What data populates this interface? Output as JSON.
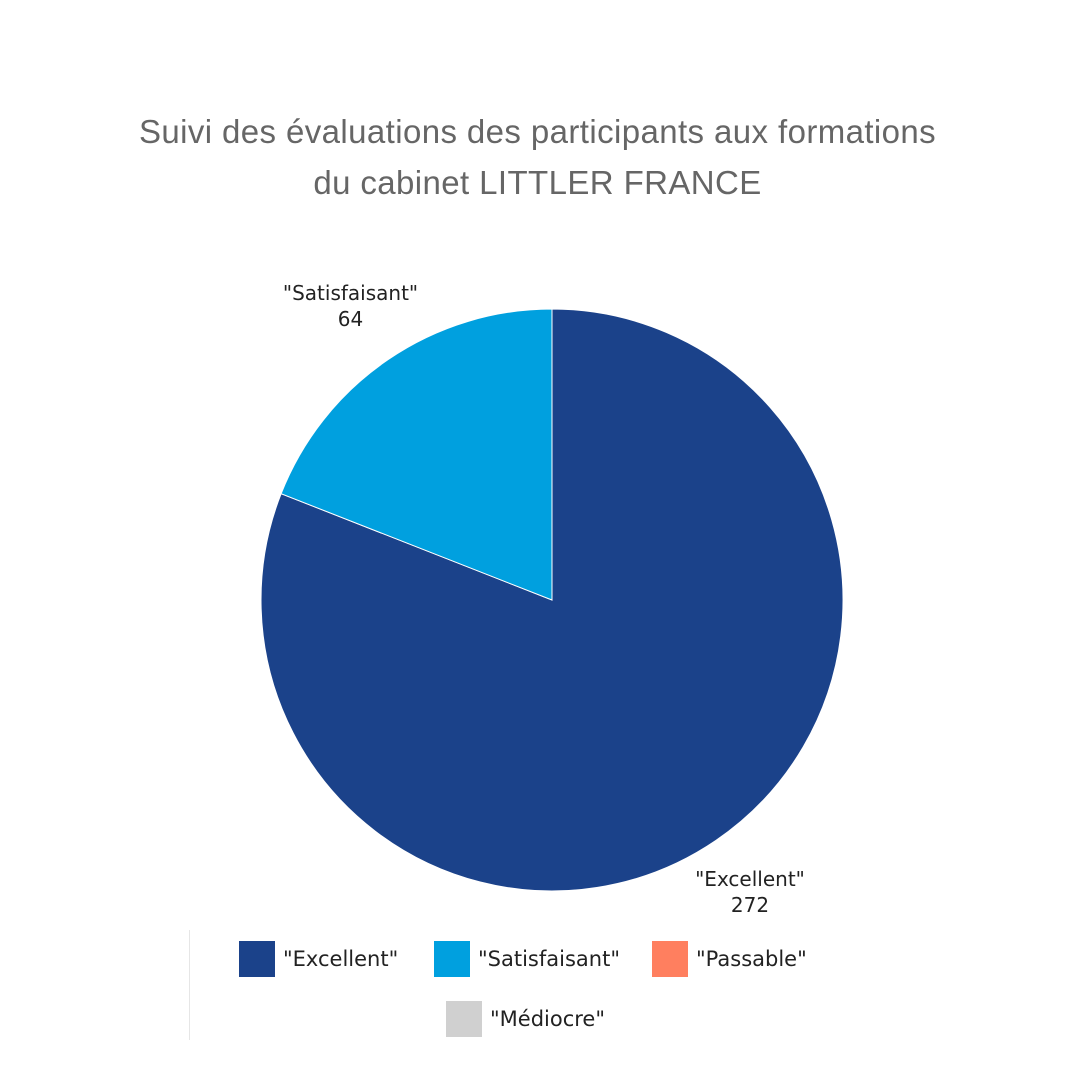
{
  "chart_data": {
    "type": "pie",
    "title_lines": [
      "Suivi des évaluations des participants aux formations",
      "du cabinet LITTLER FRANCE"
    ],
    "categories": [
      "\"Excellent\"",
      "\"Satisfaisant\"",
      "\"Passable\"",
      "\"Médiocre\""
    ],
    "values": [
      272,
      64,
      0,
      0
    ],
    "colors": [
      "#1b428a",
      "#00a0df",
      "#ff7f5f",
      "#d0d0d0"
    ],
    "data_labels": [
      {
        "name": "\"Excellent\"",
        "value": "272"
      },
      {
        "name": "\"Satisfaisant\"",
        "value": "64"
      }
    ],
    "legend": {
      "placement": "bottom",
      "items": [
        {
          "label": "\"Excellent\"",
          "color": "#1b428a"
        },
        {
          "label": "\"Satisfaisant\"",
          "color": "#00a0df"
        },
        {
          "label": "\"Passable\"",
          "color": "#ff7f5f"
        },
        {
          "label": "\"Médiocre\"",
          "color": "#d0d0d0"
        }
      ]
    }
  }
}
